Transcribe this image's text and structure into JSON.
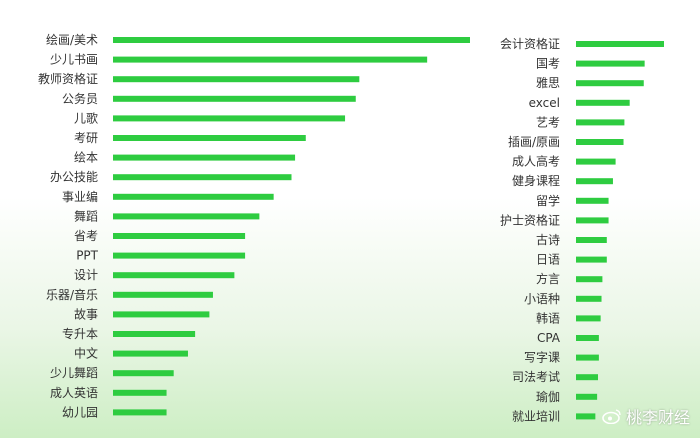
{
  "chart_data": [
    {
      "type": "bar",
      "orientation": "horizontal",
      "bar_color": "#2ecc40",
      "categories": [
        "绘画/美术",
        "少儿书画",
        "教师资格证",
        "公务员",
        "儿歌",
        "考研",
        "绘本",
        "办公技能",
        "事业编",
        "舞蹈",
        "省考",
        "PPT",
        "设计",
        "乐器/音乐",
        "故事",
        "专升本",
        "中文",
        "少儿舞蹈",
        "成人英语",
        "幼儿园"
      ],
      "values": [
        100,
        88,
        69,
        68,
        65,
        54,
        51,
        50,
        45,
        41,
        37,
        37,
        34,
        28,
        27,
        23,
        21,
        17,
        15,
        15
      ]
    },
    {
      "type": "bar",
      "orientation": "horizontal",
      "bar_color": "#2ecc40",
      "categories": [
        "会计资格证",
        "国考",
        "雅思",
        "excel",
        "艺考",
        "插画/原画",
        "成人高考",
        "健身课程",
        "留学",
        "护士资格证",
        "古诗",
        "日语",
        "方言",
        "小语种",
        "韩语",
        "CPA",
        "写字课",
        "司法考试",
        "瑜伽",
        "就业培训"
      ],
      "values": [
        100,
        78,
        77,
        61,
        55,
        54,
        45,
        42,
        37,
        37,
        35,
        35,
        30,
        29,
        28,
        26,
        26,
        25,
        24,
        22
      ]
    }
  ],
  "watermark": {
    "text": "桃李财经",
    "icon": "weibo-icon"
  }
}
